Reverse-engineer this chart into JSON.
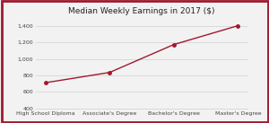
{
  "title": "Median Weekly Earnings in 2017 ($)",
  "categories": [
    "High School Diploma",
    "Associate's Degree",
    "Bachelor's Degree",
    "Master's Degree"
  ],
  "values": [
    712,
    836,
    1173,
    1401
  ],
  "line_color": "#a0192e",
  "marker_color": "#a0192e",
  "ylim": [
    400,
    1500
  ],
  "yticks": [
    400,
    600,
    800,
    1000,
    1200,
    1400
  ],
  "bg_color": "#f2f2f2",
  "plot_bg_color": "#f2f2f2",
  "border_color": "#a0192e",
  "title_fontsize": 6.5,
  "tick_fontsize": 4.5,
  "grid_color": "#d0d0d0",
  "spine_color": "#d0d0d0"
}
